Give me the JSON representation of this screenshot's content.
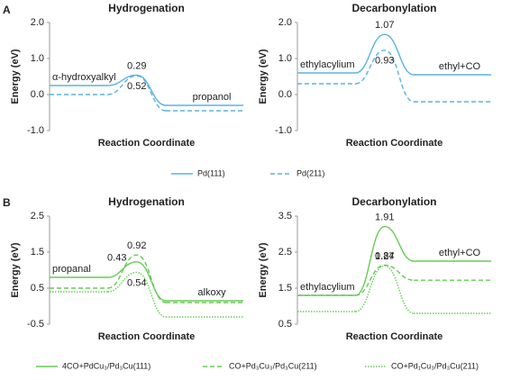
{
  "panel_labels": [
    "A",
    "B"
  ],
  "chart_data": [
    {
      "type": "energy-profile",
      "title": "Hydrogenation",
      "x_label": "Reaction Coordinate",
      "y_label": "Energy (eV)",
      "categories": [
        "α-hydroxyalkyl",
        null,
        "propanol"
      ],
      "ylim": [
        -1,
        2
      ],
      "yticks": [
        {
          "value": -1,
          "label": "-1.0"
        },
        {
          "value": 0,
          "label": "0.0"
        },
        {
          "value": 1,
          "label": "1.0"
        },
        {
          "value": 2,
          "label": "2.0"
        }
      ],
      "series": [
        {
          "name": "Pd(111)",
          "color": "#5ab4e0",
          "line_style": "solid",
          "values": [
            0.25,
            0.54,
            -0.3
          ],
          "barrier_label": "0.29"
        },
        {
          "name": "Pd(211)",
          "color": "#5ab4e0",
          "line_style": "dashed",
          "values": [
            0,
            0.52,
            -0.45
          ],
          "barrier_label": "0.52"
        }
      ]
    },
    {
      "type": "energy-profile",
      "title": "Decarbonylation",
      "x_label": "Reaction Coordinate",
      "y_label": "Energy (eV)",
      "categories": [
        "ethylacylium",
        null,
        "ethyl+CO"
      ],
      "ylim": [
        -1,
        2
      ],
      "yticks": [
        {
          "value": -1,
          "label": "-1.0"
        },
        {
          "value": 0,
          "label": "0.0"
        },
        {
          "value": 1,
          "label": "1.0"
        },
        {
          "value": 2,
          "label": "2.0"
        }
      ],
      "series": [
        {
          "name": "Pd(111)",
          "color": "#5ab4e0",
          "line_style": "solid",
          "values": [
            0.6,
            1.67,
            0.55
          ],
          "barrier_label": "1.07"
        },
        {
          "name": "Pd(211)",
          "color": "#5ab4e0",
          "line_style": "dashed",
          "values": [
            0.3,
            1.23,
            -0.2
          ],
          "barrier_label": "0.93"
        }
      ]
    },
    {
      "type": "energy-profile",
      "title": "Hydrogenation",
      "x_label": "Reaction Coordinate",
      "y_label": "Energy (eV)",
      "categories": [
        "propanal",
        null,
        "alkoxy"
      ],
      "ylim": [
        -0.5,
        2.5
      ],
      "yticks": [
        -0.5,
        0.5,
        1.5,
        2.5
      ],
      "series": [
        {
          "name": "4CO+PdCu₃/Pd₃Cu(111)",
          "color": "#66cc55",
          "line_style": "solid",
          "values": [
            0.8,
            1.23,
            0.15
          ],
          "barrier_label": "0.43"
        },
        {
          "name": "CO+Pd₃Cu₃/Pd₃Cu(211)",
          "color": "#66cc55",
          "line_style": "dashed",
          "values": [
            0.5,
            1.42,
            0.1
          ],
          "barrier_label": "0.92"
        },
        {
          "name": "CO+Pd₁Cu₃/Pd₃Cu(211)",
          "color": "#66cc55",
          "line_style": "dotted",
          "values": [
            0.4,
            0.94,
            -0.3
          ],
          "barrier_label": "0.54"
        }
      ]
    },
    {
      "type": "energy-profile",
      "title": "Decarbonylation",
      "x_label": "Reaction Coordinate",
      "y_label": "Energy (eV)",
      "categories": [
        "ethylacylium",
        null,
        "ethyl+CO"
      ],
      "ylim": [
        0.5,
        3.5
      ],
      "yticks": [
        0.5,
        1.5,
        2.5,
        3.5
      ],
      "series": [
        {
          "name": "4CO+PdCu₃/Pd₃Cu(111)",
          "color": "#66cc55",
          "line_style": "solid",
          "values": [
            1.3,
            3.21,
            2.25
          ],
          "barrier_label": "1.91"
        },
        {
          "name": "CO+Pd₃Cu₃/Pd₃Cu(211)",
          "color": "#66cc55",
          "line_style": "dashed",
          "values": [
            1.3,
            2.14,
            1.72
          ],
          "barrier_label": "0.84"
        },
        {
          "name": "CO+Pd₁Cu₃/Pd₃Cu(211)",
          "color": "#66cc55",
          "line_style": "dotted",
          "values": [
            0.85,
            2.12,
            0.8
          ],
          "barrier_label": "1.27"
        }
      ]
    }
  ]
}
